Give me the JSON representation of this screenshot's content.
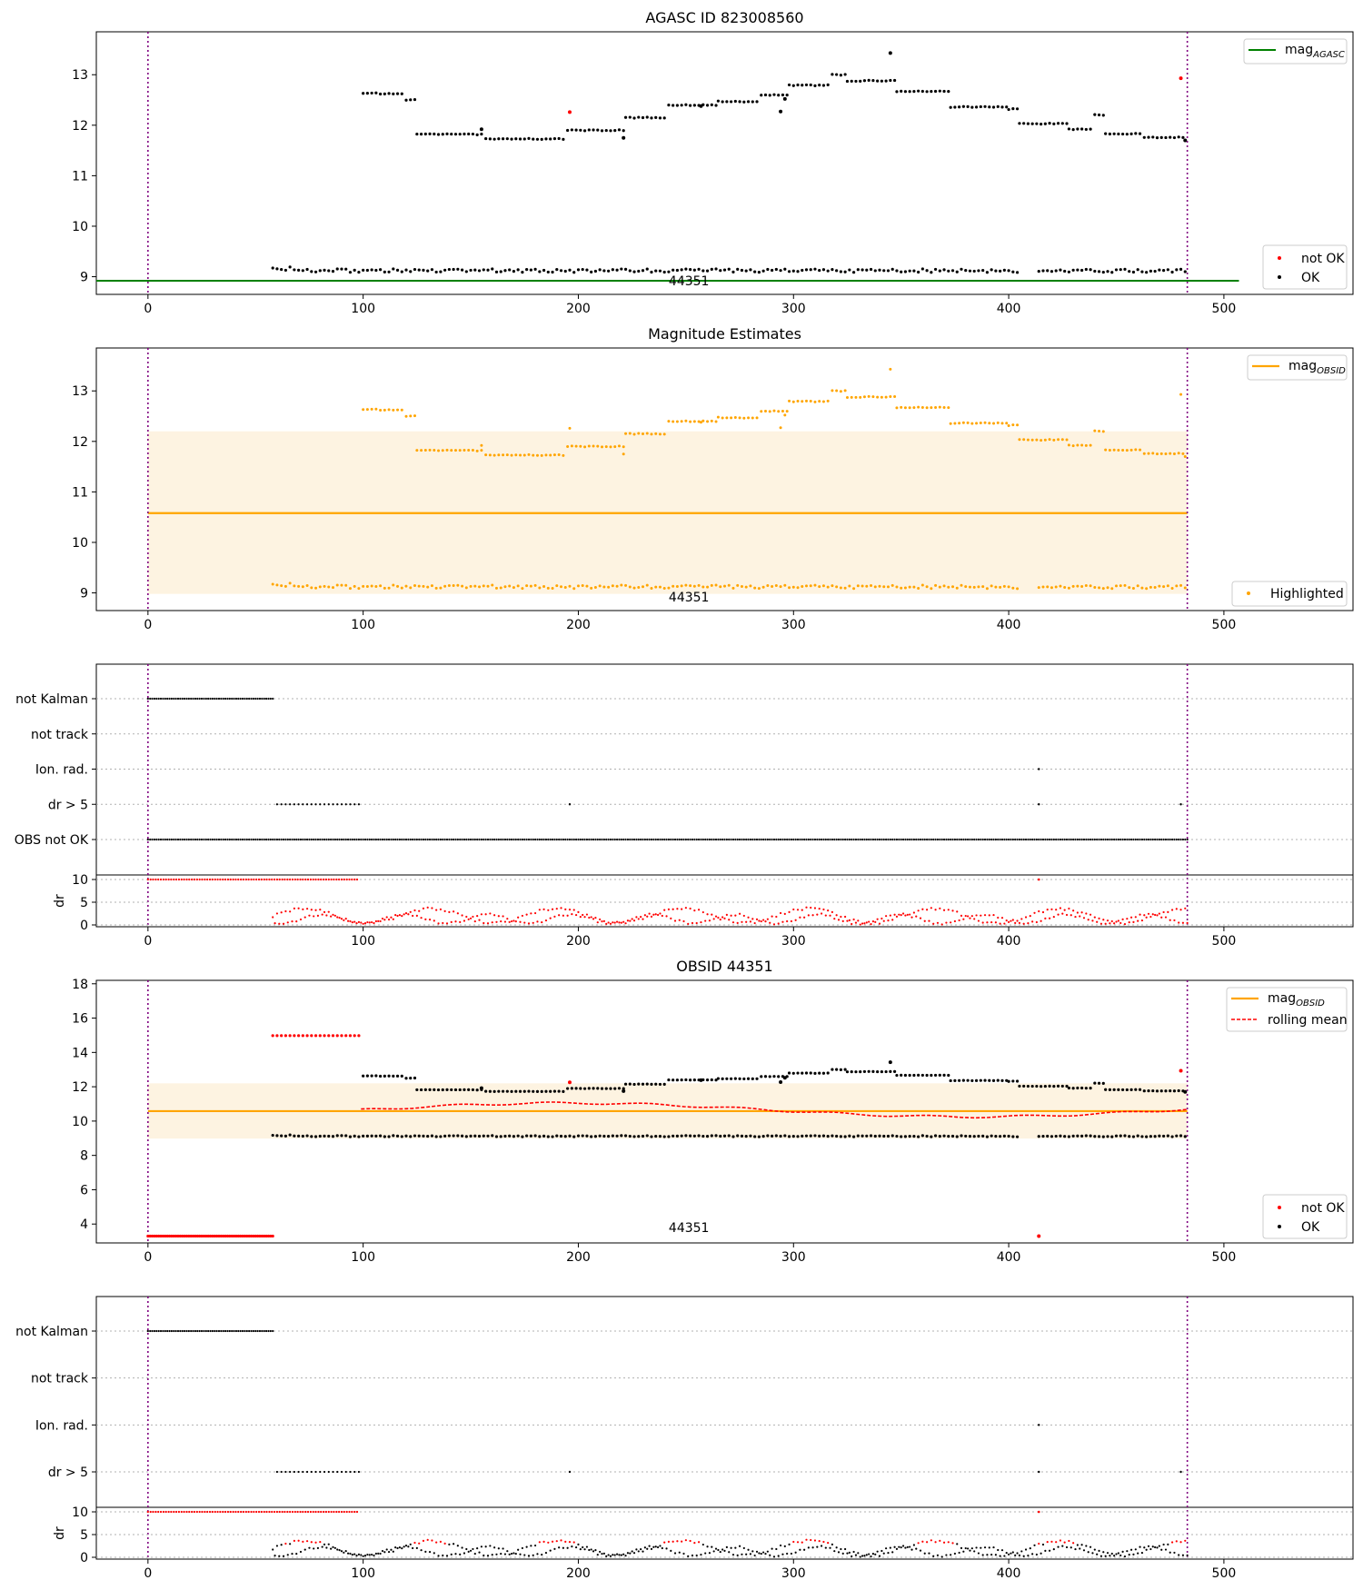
{
  "colors": {
    "ok": "#000000",
    "not_ok": "#ff0000",
    "agasc": "#008000",
    "obsid": "#ffa500",
    "band": "#fdf3e1",
    "vline": "#800080",
    "grid": "#b0b0b0"
  },
  "chart_data": [
    {
      "id": "agasc",
      "type": "scatter",
      "title": "AGASC ID 823008560",
      "xlim": [
        -24,
        560
      ],
      "ylim": [
        8.65,
        13.85
      ],
      "xticks": [
        0,
        100,
        200,
        300,
        400,
        500
      ],
      "yticks": [
        9,
        10,
        11,
        12,
        13
      ],
      "obsid_annotation": "44351",
      "obsid_annotation_pos": [
        242,
        8.92
      ],
      "vlines": [
        0,
        483
      ],
      "hline": {
        "y": 8.92,
        "x0": -24,
        "x1": 507,
        "label": "mag",
        "subscript": "AGASC"
      },
      "legend_top": "top-right",
      "legend_bottom": {
        "placement": "bottom-right",
        "entries": [
          "not OK",
          "OK"
        ]
      },
      "upper_segments": [
        [
          100,
          12.64
        ],
        [
          108,
          12.62
        ],
        [
          120,
          12.5
        ],
        [
          125,
          11.82
        ],
        [
          157,
          11.73
        ],
        [
          195,
          11.9
        ],
        [
          222,
          12.15
        ],
        [
          242,
          12.4
        ],
        [
          265,
          12.47
        ],
        [
          285,
          12.6
        ],
        [
          298,
          12.79
        ],
        [
          318,
          13.0
        ],
        [
          325,
          12.88
        ],
        [
          348,
          12.67
        ],
        [
          373,
          12.36
        ],
        [
          400,
          12.32
        ],
        [
          405,
          12.03
        ],
        [
          428,
          11.92
        ],
        [
          440,
          12.2
        ],
        [
          445,
          11.83
        ],
        [
          463,
          11.76
        ],
        [
          483,
          11.7
        ]
      ],
      "upper_outliers_ok": [
        [
          155,
          11.92
        ],
        [
          221,
          11.75
        ],
        [
          257,
          12.38
        ],
        [
          294,
          12.27
        ],
        [
          296,
          12.52
        ],
        [
          345,
          13.43
        ],
        [
          482,
          11.7
        ]
      ],
      "upper_outliers_bad": [
        [
          196,
          12.26
        ],
        [
          480,
          12.93
        ]
      ],
      "lower_range": [
        58,
        483
      ],
      "lower_mean": 9.12,
      "lower_gaps": [
        [
          405,
          414
        ]
      ]
    },
    {
      "id": "estimates",
      "type": "scatter",
      "title": "Magnitude Estimates",
      "xlim": [
        -24,
        560
      ],
      "ylim": [
        8.65,
        13.85
      ],
      "xticks": [
        0,
        100,
        200,
        300,
        400,
        500
      ],
      "yticks": [
        9,
        10,
        11,
        12,
        13
      ],
      "obsid_annotation": "44351",
      "obsid_annotation_pos": [
        242,
        8.92
      ],
      "vlines": [
        0,
        483
      ],
      "band": {
        "x0": 0,
        "x1": 483,
        "y0": 8.98,
        "y1": 12.2
      },
      "mag_line": {
        "y": 10.58,
        "x0": 0,
        "x1": 483,
        "label": "mag",
        "subscript": "OBSID"
      },
      "legend_top": "top-right",
      "legend_bottom": {
        "placement": "bottom-right",
        "entries": [
          "Highlighted"
        ]
      }
    },
    {
      "id": "flags_1",
      "type": "scatter",
      "xlim": [
        -24,
        560
      ],
      "xticks": [
        0,
        100,
        200,
        300,
        400,
        500
      ],
      "vlines": [
        0,
        483
      ],
      "rows": [
        "not Kalman",
        "not track",
        "Ion. rad.",
        "dr > 5",
        "OBS not OK"
      ],
      "not_kalman_range": [
        0,
        58
      ],
      "dr_gt5_range": [
        60,
        98
      ],
      "dr_gt5_points": [
        196,
        414,
        480
      ],
      "ion_rad_points": [
        414
      ],
      "obs_not_ok_range": [
        0,
        483
      ],
      "dr_ylabel": "dr",
      "dr_yticks": [
        0,
        5,
        10
      ],
      "dr_ylim": [
        -0.4,
        11
      ],
      "dr_colormode": "red"
    },
    {
      "id": "obsid",
      "type": "scatter",
      "title": "OBSID 44351",
      "xlim": [
        -24,
        560
      ],
      "ylim": [
        2.9,
        18.2
      ],
      "xticks": [
        0,
        100,
        200,
        300,
        400,
        500
      ],
      "yticks": [
        4,
        6,
        8,
        10,
        12,
        14,
        16,
        18
      ],
      "obsid_annotation": "44351",
      "obsid_annotation_pos": [
        242,
        3.8
      ],
      "vlines": [
        0,
        483
      ],
      "band": {
        "x0": 0,
        "x1": 483,
        "y0": 8.98,
        "y1": 12.2
      },
      "mag_line": {
        "y": 10.58,
        "x0": 0,
        "x1": 483,
        "label": "mag",
        "subscript": "OBSID"
      },
      "rolling_label": "rolling mean",
      "bad_high_range": [
        58,
        98
      ],
      "bad_high_value": 14.98,
      "bad_low_range": [
        0,
        58
      ],
      "bad_low_value": 3.3,
      "bad_low_points": [
        414
      ],
      "legend_top": "top-right",
      "legend_bottom": {
        "placement": "bottom-right",
        "entries": [
          "not OK",
          "OK"
        ]
      }
    },
    {
      "id": "flags_2",
      "type": "scatter",
      "xlim": [
        -24,
        560
      ],
      "xticks": [
        0,
        100,
        200,
        300,
        400,
        500
      ],
      "vlines": [
        0,
        483
      ],
      "rows": [
        "not Kalman",
        "not track",
        "Ion. rad.",
        "dr > 5"
      ],
      "not_kalman_range": [
        0,
        58
      ],
      "dr_gt5_range": [
        60,
        98
      ],
      "dr_gt5_points": [
        196,
        414,
        480
      ],
      "ion_rad_points": [
        414
      ],
      "dr_ylabel": "dr",
      "dr_yticks": [
        0,
        5,
        10
      ],
      "dr_ylim": [
        -0.4,
        11
      ],
      "dr_colormode": "mixed"
    }
  ]
}
